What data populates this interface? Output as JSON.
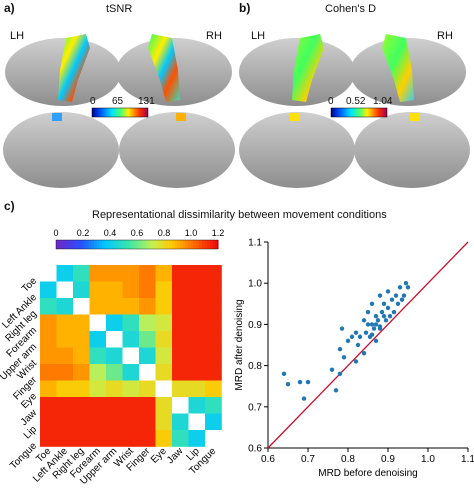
{
  "panel_a": {
    "label": "a)",
    "title": "tSNR",
    "lh": "LH",
    "rh": "RH",
    "colorbar_ticks": [
      "0",
      "65",
      "131"
    ]
  },
  "panel_b": {
    "label": "b)",
    "title": "Cohen's D",
    "lh": "LH",
    "rh": "RH",
    "colorbar_ticks": [
      "0",
      "0.52",
      "1.04"
    ]
  },
  "panel_c": {
    "label": "c)",
    "title": "Representational dissimilarity between movement conditions"
  },
  "colors": {
    "brain_gray": "#b4b4b4",
    "identity_line": "#c8102e",
    "points": "#1f77b4"
  },
  "chart_data": [
    {
      "type": "heatmap",
      "title": "Representational dissimilarity between movement conditions",
      "labels": [
        "Toe",
        "Left Ankle",
        "Right leg",
        "Forearm",
        "Upper arm",
        "Wrist",
        "Finger",
        "Eye",
        "Jaw",
        "Lip",
        "Tongue"
      ],
      "colorbar_ticks": [
        "0",
        "0.2",
        "0.4",
        "0.6",
        "0.8",
        "1.0",
        "1.2"
      ],
      "vmin": 0,
      "vmax": 1.2,
      "values": [
        [
          0.0,
          0.4,
          0.5,
          0.95,
          0.95,
          0.95,
          1.0,
          0.9,
          1.15,
          1.15,
          1.15
        ],
        [
          0.4,
          0.0,
          0.45,
          0.9,
          0.9,
          0.95,
          1.0,
          0.85,
          1.15,
          1.15,
          1.15
        ],
        [
          0.5,
          0.45,
          0.0,
          0.9,
          0.9,
          0.9,
          0.95,
          0.85,
          1.15,
          1.15,
          1.15
        ],
        [
          0.95,
          0.9,
          0.9,
          0.0,
          0.4,
          0.5,
          0.7,
          0.75,
          1.15,
          1.15,
          1.15
        ],
        [
          0.95,
          0.9,
          0.9,
          0.4,
          0.0,
          0.45,
          0.6,
          0.8,
          1.15,
          1.15,
          1.15
        ],
        [
          0.95,
          0.95,
          0.9,
          0.5,
          0.45,
          0.0,
          0.45,
          0.75,
          1.15,
          1.15,
          1.15
        ],
        [
          1.0,
          1.0,
          0.95,
          0.7,
          0.6,
          0.45,
          0.0,
          0.8,
          1.15,
          1.15,
          1.15
        ],
        [
          0.9,
          0.85,
          0.85,
          0.75,
          0.8,
          0.75,
          0.8,
          0.0,
          0.8,
          0.8,
          0.85
        ],
        [
          1.15,
          1.15,
          1.15,
          1.15,
          1.15,
          1.15,
          1.15,
          0.8,
          0.0,
          0.45,
          0.5
        ],
        [
          1.15,
          1.15,
          1.15,
          1.15,
          1.15,
          1.15,
          1.15,
          0.8,
          0.45,
          0.0,
          0.4
        ],
        [
          1.15,
          1.15,
          1.15,
          1.15,
          1.15,
          1.15,
          1.15,
          0.85,
          0.5,
          0.4,
          0.0
        ]
      ]
    },
    {
      "type": "scatter",
      "xlabel": "MRD before denoising",
      "ylabel": "MRD after denoising",
      "xlim": [
        0.6,
        1.1
      ],
      "ylim": [
        0.6,
        1.1
      ],
      "xticks": [
        "0.6",
        "0.7",
        "0.8",
        "0.9",
        "1.0",
        "1.1"
      ],
      "yticks": [
        "0.6",
        "0.7",
        "0.8",
        "0.9",
        "1.0",
        "1.1"
      ],
      "identity_line": true,
      "points": [
        [
          0.64,
          0.78
        ],
        [
          0.65,
          0.755
        ],
        [
          0.68,
          0.76
        ],
        [
          0.69,
          0.72
        ],
        [
          0.7,
          0.76
        ],
        [
          0.76,
          0.79
        ],
        [
          0.77,
          0.74
        ],
        [
          0.78,
          0.84
        ],
        [
          0.785,
          0.89
        ],
        [
          0.79,
          0.82
        ],
        [
          0.8,
          0.86
        ],
        [
          0.81,
          0.87
        ],
        [
          0.82,
          0.88
        ],
        [
          0.825,
          0.85
        ],
        [
          0.83,
          0.87
        ],
        [
          0.84,
          0.83
        ],
        [
          0.84,
          0.91
        ],
        [
          0.845,
          0.88
        ],
        [
          0.85,
          0.9
        ],
        [
          0.85,
          0.93
        ],
        [
          0.855,
          0.87
        ],
        [
          0.86,
          0.95
        ],
        [
          0.86,
          0.9
        ],
        [
          0.865,
          0.89
        ],
        [
          0.87,
          0.92
        ],
        [
          0.87,
          0.9
        ],
        [
          0.875,
          0.91
        ],
        [
          0.88,
          0.89
        ],
        [
          0.88,
          0.97
        ],
        [
          0.885,
          0.93
        ],
        [
          0.89,
          0.92
        ],
        [
          0.89,
          0.95
        ],
        [
          0.895,
          0.91
        ],
        [
          0.9,
          0.94
        ],
        [
          0.9,
          0.98
        ],
        [
          0.905,
          0.92
        ],
        [
          0.91,
          0.96
        ],
        [
          0.915,
          0.93
        ],
        [
          0.92,
          0.97
        ],
        [
          0.925,
          0.95
        ],
        [
          0.93,
          0.99
        ],
        [
          0.935,
          0.96
        ],
        [
          0.94,
          0.97
        ],
        [
          0.945,
          1.0
        ],
        [
          0.95,
          0.99
        ],
        [
          0.82,
          0.81
        ],
        [
          0.87,
          0.86
        ],
        [
          0.88,
          0.895
        ],
        [
          0.86,
          0.875
        ],
        [
          0.78,
          0.78
        ]
      ]
    }
  ]
}
